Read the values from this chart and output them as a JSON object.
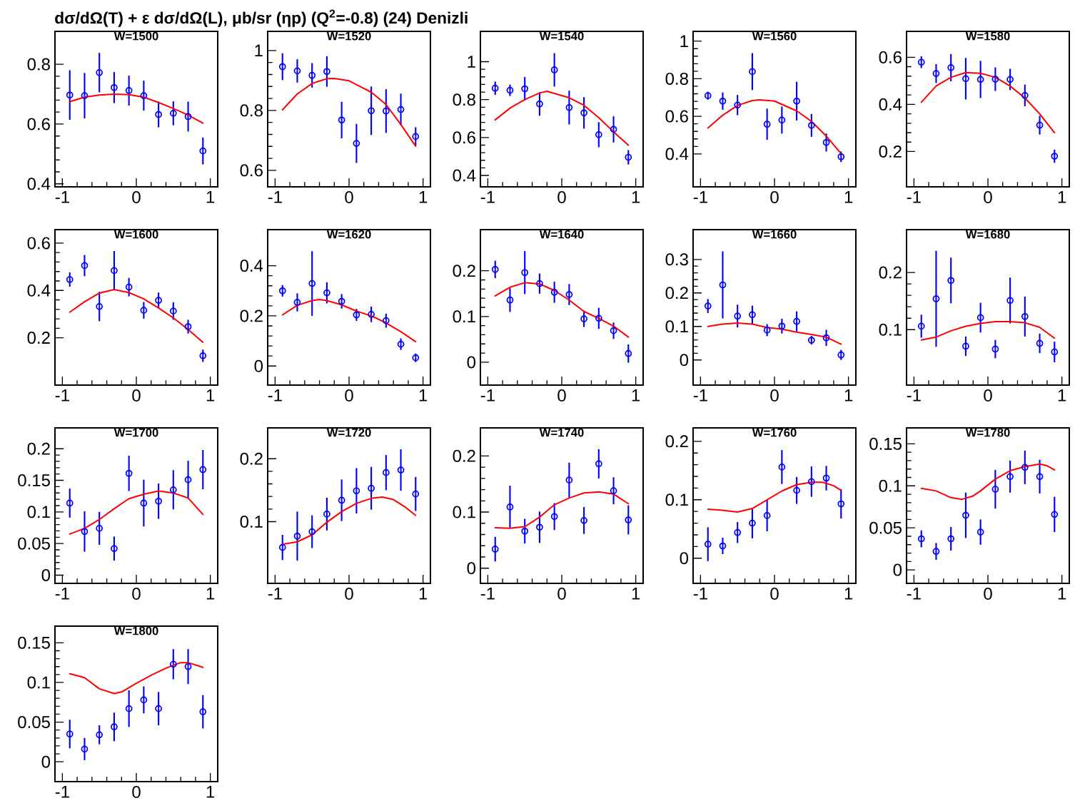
{
  "chart_data": [
    {
      "type": "scatter",
      "title": "W=1500",
      "annotations": [
        "dσ/dΩ(T) + ε dσ/dΩ(L), μb/sr (ηp) (Q$^{2}$=-0.8)  (24)  Denizli"
      ],
      "x": [
        -0.9,
        -0.7,
        -0.5,
        -0.3,
        -0.1,
        0.1,
        0.3,
        0.5,
        0.7,
        0.9
      ],
      "xlim": [
        -1.1,
        1.1
      ],
      "xticks": [
        -1,
        0,
        1
      ],
      "ylim": [
        0.39,
        0.91
      ],
      "yticks": [
        0.4,
        0.6,
        0.8
      ],
      "series": [
        {
          "color": "#0000ff",
          "marker": "circle",
          "values": [
            0.697,
            0.695,
            0.772,
            0.722,
            0.712,
            0.695,
            0.632,
            0.636,
            0.625,
            0.51
          ],
          "errors": [
            0.083,
            0.076,
            0.066,
            0.052,
            0.05,
            0.05,
            0.043,
            0.04,
            0.05,
            0.045
          ]
        },
        {
          "type": "line",
          "color": "#ff0000",
          "x": [
            -0.9,
            -0.7,
            -0.5,
            -0.3,
            -0.1,
            0.1,
            0.3,
            0.5,
            0.7,
            0.9
          ],
          "values": [
            0.675,
            0.69,
            0.697,
            0.7,
            0.698,
            0.69,
            0.672,
            0.652,
            0.63,
            0.603
          ]
        }
      ]
    },
    {
      "type": "scatter",
      "title": "W=1520",
      "x": [
        -0.9,
        -0.7,
        -0.5,
        -0.3,
        -0.1,
        0.1,
        0.3,
        0.5,
        0.7,
        0.9
      ],
      "xlim": [
        -1.1,
        1.1
      ],
      "xticks": [
        -1,
        0,
        1
      ],
      "ylim": [
        0.545,
        1.064
      ],
      "yticks": [
        0.6,
        0.8,
        1
      ],
      "series": [
        {
          "color": "#0000ff",
          "marker": "circle",
          "values": [
            0.946,
            0.932,
            0.917,
            0.93,
            0.768,
            0.69,
            0.799,
            0.798,
            0.803,
            0.713
          ],
          "errors": [
            0.045,
            0.039,
            0.041,
            0.051,
            0.061,
            0.065,
            0.081,
            0.073,
            0.053,
            0.031
          ]
        },
        {
          "type": "line",
          "color": "#ff0000",
          "x": [
            -0.9,
            -0.7,
            -0.5,
            -0.3,
            -0.2,
            0,
            0.3,
            0.5,
            0.7,
            0.9
          ],
          "values": [
            0.802,
            0.855,
            0.89,
            0.906,
            0.907,
            0.899,
            0.861,
            0.82,
            0.753,
            0.681
          ]
        }
      ]
    },
    {
      "type": "scatter",
      "title": "W=1540",
      "x": [
        -0.9,
        -0.7,
        -0.5,
        -0.3,
        -0.1,
        0.1,
        0.3,
        0.5,
        0.7,
        0.9
      ],
      "xlim": [
        -1.1,
        1.1
      ],
      "xticks": [
        -1,
        0,
        1
      ],
      "ylim": [
        0.34,
        1.16
      ],
      "yticks": [
        0.4,
        0.6,
        0.8,
        1
      ],
      "series": [
        {
          "color": "#0000ff",
          "marker": "circle",
          "values": [
            0.86,
            0.849,
            0.857,
            0.777,
            0.957,
            0.758,
            0.73,
            0.615,
            0.643,
            0.496
          ],
          "errors": [
            0.035,
            0.03,
            0.062,
            0.062,
            0.088,
            0.089,
            0.083,
            0.066,
            0.069,
            0.038
          ]
        },
        {
          "type": "line",
          "color": "#ff0000",
          "x": [
            -0.9,
            -0.7,
            -0.5,
            -0.3,
            -0.2,
            0.1,
            0.3,
            0.5,
            0.7,
            0.9
          ],
          "values": [
            0.693,
            0.755,
            0.8,
            0.835,
            0.844,
            0.81,
            0.77,
            0.705,
            0.63,
            0.56
          ]
        }
      ]
    },
    {
      "type": "scatter",
      "title": "W=1560",
      "x": [
        -0.9,
        -0.7,
        -0.5,
        -0.3,
        -0.1,
        0.1,
        0.3,
        0.5,
        0.7,
        0.9
      ],
      "xlim": [
        -1.1,
        1.1
      ],
      "xticks": [
        -1,
        0,
        1
      ],
      "ylim": [
        0.225,
        1.052
      ],
      "yticks": [
        0.4,
        0.6,
        0.8,
        1
      ],
      "series": [
        {
          "color": "#0000ff",
          "marker": "circle",
          "values": [
            0.71,
            0.681,
            0.66,
            0.838,
            0.558,
            0.58,
            0.681,
            0.552,
            0.461,
            0.385
          ],
          "errors": [
            0.021,
            0.046,
            0.054,
            0.098,
            0.083,
            0.072,
            0.103,
            0.061,
            0.048,
            0.028
          ]
        },
        {
          "type": "line",
          "color": "#ff0000",
          "x": [
            -0.9,
            -0.7,
            -0.5,
            -0.3,
            -0.2,
            0,
            0.3,
            0.5,
            0.7,
            0.9
          ],
          "values": [
            0.538,
            0.606,
            0.658,
            0.684,
            0.688,
            0.681,
            0.629,
            0.573,
            0.495,
            0.402
          ]
        }
      ]
    },
    {
      "type": "scatter",
      "title": "W=1580",
      "x": [
        -0.9,
        -0.7,
        -0.5,
        -0.3,
        -0.1,
        0.1,
        0.3,
        0.5,
        0.7,
        0.9
      ],
      "xlim": [
        -1.1,
        1.1
      ],
      "xticks": [
        -1,
        0,
        1
      ],
      "ylim": [
        0.05,
        0.71
      ],
      "yticks": [
        0.2,
        0.4,
        0.6
      ],
      "series": [
        {
          "color": "#0000ff",
          "marker": "circle",
          "values": [
            0.579,
            0.531,
            0.556,
            0.509,
            0.506,
            0.507,
            0.506,
            0.438,
            0.312,
            0.18
          ],
          "errors": [
            0.025,
            0.04,
            0.058,
            0.088,
            0.079,
            0.05,
            0.045,
            0.046,
            0.04,
            0.028
          ]
        },
        {
          "type": "line",
          "color": "#ff0000",
          "x": [
            -0.9,
            -0.7,
            -0.5,
            -0.3,
            -0.1,
            0.1,
            0.3,
            0.5,
            0.7,
            0.9
          ],
          "values": [
            0.409,
            0.478,
            0.515,
            0.535,
            0.532,
            0.515,
            0.478,
            0.427,
            0.36,
            0.28
          ]
        }
      ]
    },
    {
      "type": "scatter",
      "title": "W=1600",
      "x": [
        -0.9,
        -0.7,
        -0.5,
        -0.3,
        -0.1,
        0.1,
        0.3,
        0.5,
        0.7,
        0.9
      ],
      "xlim": [
        -1.1,
        1.1
      ],
      "xticks": [
        -1,
        0,
        1
      ],
      "ylim": [
        0.0,
        0.657
      ],
      "yticks": [
        0.2,
        0.4,
        0.6
      ],
      "series": [
        {
          "color": "#0000ff",
          "marker": "circle",
          "values": [
            0.446,
            0.505,
            0.332,
            0.484,
            0.414,
            0.316,
            0.358,
            0.313,
            0.247,
            0.124
          ],
          "errors": [
            0.03,
            0.045,
            0.062,
            0.083,
            0.039,
            0.035,
            0.033,
            0.037,
            0.029,
            0.026
          ]
        },
        {
          "type": "line",
          "color": "#ff0000",
          "x": [
            -0.9,
            -0.7,
            -0.5,
            -0.3,
            -0.1,
            0.1,
            0.3,
            0.5,
            0.7,
            0.9
          ],
          "values": [
            0.308,
            0.352,
            0.389,
            0.404,
            0.391,
            0.364,
            0.326,
            0.284,
            0.235,
            0.181
          ]
        }
      ]
    },
    {
      "type": "scatter",
      "title": "W=1620",
      "x": [
        -0.9,
        -0.7,
        -0.5,
        -0.3,
        -0.1,
        0.1,
        0.3,
        0.5,
        0.7,
        0.9
      ],
      "xlim": [
        -1.1,
        1.1
      ],
      "xticks": [
        -1,
        0,
        1
      ],
      "ylim": [
        -0.076,
        0.544
      ],
      "yticks": [
        0,
        0.2,
        0.4
      ],
      "series": [
        {
          "color": "#0000ff",
          "marker": "circle",
          "values": [
            0.3,
            0.254,
            0.329,
            0.292,
            0.258,
            0.204,
            0.206,
            0.181,
            0.087,
            0.033
          ],
          "errors": [
            0.023,
            0.036,
            0.129,
            0.042,
            0.029,
            0.024,
            0.031,
            0.028,
            0.023,
            0.017
          ]
        },
        {
          "type": "line",
          "color": "#ff0000",
          "x": [
            -0.9,
            -0.7,
            -0.5,
            -0.4,
            -0.3,
            -0.1,
            0.1,
            0.3,
            0.5,
            0.7,
            0.9
          ],
          "values": [
            0.204,
            0.242,
            0.261,
            0.265,
            0.261,
            0.244,
            0.219,
            0.2,
            0.172,
            0.137,
            0.097
          ]
        }
      ]
    },
    {
      "type": "scatter",
      "title": "W=1640",
      "x": [
        -0.9,
        -0.7,
        -0.5,
        -0.3,
        -0.1,
        0.1,
        0.3,
        0.5,
        0.7,
        0.9
      ],
      "xlim": [
        -1.1,
        1.1
      ],
      "xticks": [
        -1,
        0,
        1
      ],
      "ylim": [
        -0.05,
        0.29
      ],
      "yticks": [
        0,
        0.1,
        0.2
      ],
      "series": [
        {
          "color": "#0000ff",
          "marker": "circle",
          "values": [
            0.203,
            0.136,
            0.196,
            0.172,
            0.153,
            0.148,
            0.095,
            0.096,
            0.069,
            0.019
          ],
          "errors": [
            0.019,
            0.026,
            0.047,
            0.022,
            0.023,
            0.023,
            0.018,
            0.023,
            0.018,
            0.02
          ]
        },
        {
          "type": "line",
          "color": "#ff0000",
          "x": [
            -0.9,
            -0.7,
            -0.5,
            -0.3,
            -0.1,
            0.1,
            0.3,
            0.5,
            0.7,
            0.9
          ],
          "values": [
            0.145,
            0.164,
            0.174,
            0.171,
            0.157,
            0.136,
            0.111,
            0.096,
            0.079,
            0.055
          ]
        }
      ]
    },
    {
      "type": "scatter",
      "title": "W=1660",
      "x": [
        -0.9,
        -0.7,
        -0.5,
        -0.3,
        -0.1,
        0.1,
        0.3,
        0.5,
        0.7,
        0.9
      ],
      "xlim": [
        -1.1,
        1.1
      ],
      "xticks": [
        -1,
        0,
        1
      ],
      "ylim": [
        -0.075,
        0.389
      ],
      "yticks": [
        0,
        0.1,
        0.2,
        0.3
      ],
      "series": [
        {
          "color": "#0000ff",
          "marker": "circle",
          "values": [
            0.161,
            0.224,
            0.131,
            0.135,
            0.089,
            0.101,
            0.115,
            0.059,
            0.066,
            0.015
          ],
          "errors": [
            0.021,
            0.1,
            0.034,
            0.027,
            0.018,
            0.022,
            0.03,
            0.013,
            0.024,
            0.015
          ]
        },
        {
          "type": "line",
          "color": "#ff0000",
          "x": [
            -0.9,
            -0.7,
            -0.5,
            -0.3,
            -0.1,
            0.1,
            0.3,
            0.5,
            0.7,
            0.9
          ],
          "values": [
            0.1,
            0.107,
            0.11,
            0.107,
            0.097,
            0.092,
            0.083,
            0.076,
            0.068,
            0.047
          ]
        }
      ]
    },
    {
      "type": "scatter",
      "title": "W=1680",
      "x": [
        -0.9,
        -0.7,
        -0.5,
        -0.3,
        -0.1,
        0.1,
        0.3,
        0.5,
        0.7,
        0.9
      ],
      "xlim": [
        -1.1,
        1.1
      ],
      "xticks": [
        -1,
        0,
        1
      ],
      "ylim": [
        0.003,
        0.275
      ],
      "yticks": [
        0.1,
        0.2
      ],
      "series": [
        {
          "color": "#0000ff",
          "marker": "circle",
          "values": [
            0.106,
            0.154,
            0.186,
            0.071,
            0.121,
            0.066,
            0.151,
            0.123,
            0.076,
            0.061
          ],
          "errors": [
            0.02,
            0.084,
            0.04,
            0.017,
            0.026,
            0.016,
            0.04,
            0.035,
            0.017,
            0.018
          ]
        },
        {
          "type": "line",
          "color": "#ff0000",
          "x": [
            -0.9,
            -0.7,
            -0.5,
            -0.3,
            -0.1,
            0.1,
            0.3,
            0.5,
            0.7,
            0.9
          ],
          "values": [
            0.082,
            0.087,
            0.098,
            0.106,
            0.111,
            0.114,
            0.114,
            0.112,
            0.104,
            0.085
          ]
        }
      ]
    },
    {
      "type": "scatter",
      "title": "W=1700",
      "x": [
        -0.9,
        -0.7,
        -0.5,
        -0.3,
        -0.1,
        0.1,
        0.3,
        0.5,
        0.7,
        0.9
      ],
      "xlim": [
        -1.1,
        1.1
      ],
      "xticks": [
        -1,
        0,
        1
      ],
      "ylim": [
        -0.013,
        0.233
      ],
      "yticks": [
        0,
        0.05,
        0.1,
        0.15,
        0.2
      ],
      "series": [
        {
          "color": "#0000ff",
          "marker": "circle",
          "values": [
            0.114,
            0.069,
            0.074,
            0.042,
            0.161,
            0.114,
            0.117,
            0.135,
            0.151,
            0.167
          ],
          "errors": [
            0.023,
            0.032,
            0.026,
            0.019,
            0.028,
            0.037,
            0.028,
            0.031,
            0.03,
            0.031
          ]
        },
        {
          "type": "line",
          "color": "#ff0000",
          "x": [
            -0.9,
            -0.7,
            -0.5,
            -0.3,
            -0.1,
            0.1,
            0.3,
            0.5,
            0.7,
            0.9
          ],
          "values": [
            0.065,
            0.074,
            0.088,
            0.105,
            0.121,
            0.128,
            0.133,
            0.13,
            0.122,
            0.096
          ]
        }
      ]
    },
    {
      "type": "scatter",
      "title": "W=1720",
      "x": [
        -0.9,
        -0.7,
        -0.5,
        -0.3,
        -0.1,
        0.1,
        0.3,
        0.5,
        0.7,
        0.9
      ],
      "xlim": [
        -1.1,
        1.1
      ],
      "xticks": [
        -1,
        0,
        1
      ],
      "ylim": [
        0.002,
        0.249
      ],
      "yticks": [
        0.1,
        0.2
      ],
      "series": [
        {
          "color": "#0000ff",
          "marker": "circle",
          "values": [
            0.059,
            0.077,
            0.084,
            0.112,
            0.134,
            0.149,
            0.153,
            0.178,
            0.182,
            0.144
          ],
          "errors": [
            0.02,
            0.039,
            0.026,
            0.026,
            0.033,
            0.036,
            0.034,
            0.028,
            0.033,
            0.027
          ]
        },
        {
          "type": "line",
          "color": "#ff0000",
          "x": [
            -0.9,
            -0.7,
            -0.5,
            -0.3,
            -0.1,
            0.1,
            0.3,
            0.45,
            0.6,
            0.75,
            0.9
          ],
          "values": [
            0.064,
            0.068,
            0.079,
            0.099,
            0.116,
            0.129,
            0.137,
            0.139,
            0.135,
            0.124,
            0.11
          ]
        }
      ]
    },
    {
      "type": "scatter",
      "title": "W=1740",
      "x": [
        -0.9,
        -0.7,
        -0.5,
        -0.3,
        -0.1,
        0.1,
        0.3,
        0.5,
        0.7,
        0.9
      ],
      "xlim": [
        -1.1,
        1.1
      ],
      "xticks": [
        -1,
        0,
        1
      ],
      "ylim": [
        -0.027,
        0.25
      ],
      "yticks": [
        0,
        0.1,
        0.2
      ],
      "series": [
        {
          "color": "#0000ff",
          "marker": "circle",
          "values": [
            0.034,
            0.109,
            0.066,
            0.073,
            0.092,
            0.157,
            0.085,
            0.186,
            0.138,
            0.086
          ],
          "errors": [
            0.022,
            0.038,
            0.022,
            0.028,
            0.024,
            0.031,
            0.024,
            0.026,
            0.024,
            0.026
          ]
        },
        {
          "type": "line",
          "color": "#ff0000",
          "x": [
            -0.9,
            -0.7,
            -0.5,
            -0.3,
            -0.1,
            0.1,
            0.3,
            0.5,
            0.7,
            0.9
          ],
          "values": [
            0.072,
            0.071,
            0.074,
            0.091,
            0.113,
            0.125,
            0.134,
            0.136,
            0.132,
            0.115
          ]
        }
      ]
    },
    {
      "type": "scatter",
      "title": "W=1760",
      "x": [
        -0.9,
        -0.7,
        -0.5,
        -0.3,
        -0.1,
        0.1,
        0.3,
        0.5,
        0.7,
        0.9
      ],
      "xlim": [
        -1.1,
        1.1
      ],
      "xticks": [
        -1,
        0,
        1
      ],
      "ylim": [
        -0.043,
        0.223
      ],
      "yticks": [
        0,
        0.1,
        0.2
      ],
      "series": [
        {
          "color": "#0000ff",
          "marker": "circle",
          "values": [
            0.024,
            0.021,
            0.044,
            0.06,
            0.073,
            0.156,
            0.116,
            0.131,
            0.137,
            0.093
          ],
          "errors": [
            0.029,
            0.014,
            0.018,
            0.026,
            0.027,
            0.029,
            0.023,
            0.026,
            0.021,
            0.025
          ]
        },
        {
          "type": "line",
          "color": "#ff0000",
          "x": [
            -0.9,
            -0.7,
            -0.5,
            -0.3,
            -0.1,
            0.1,
            0.3,
            0.5,
            0.65,
            0.8,
            0.9
          ],
          "values": [
            0.084,
            0.082,
            0.079,
            0.085,
            0.1,
            0.115,
            0.126,
            0.13,
            0.13,
            0.124,
            0.116
          ]
        }
      ]
    },
    {
      "type": "scatter",
      "title": "W=1780",
      "x": [
        -0.9,
        -0.7,
        -0.5,
        -0.3,
        -0.1,
        0.1,
        0.3,
        0.5,
        0.7,
        0.9
      ],
      "xlim": [
        -1.1,
        1.1
      ],
      "xticks": [
        -1,
        0,
        1
      ],
      "ylim": [
        -0.016,
        0.169
      ],
      "yticks": [
        0,
        0.05,
        0.1,
        0.15
      ],
      "series": [
        {
          "color": "#0000ff",
          "marker": "circle",
          "values": [
            0.037,
            0.022,
            0.037,
            0.065,
            0.045,
            0.096,
            0.111,
            0.122,
            0.111,
            0.066
          ],
          "errors": [
            0.01,
            0.01,
            0.014,
            0.027,
            0.015,
            0.023,
            0.019,
            0.02,
            0.02,
            0.021
          ]
        },
        {
          "type": "line",
          "color": "#ff0000",
          "x": [
            -0.9,
            -0.7,
            -0.5,
            -0.35,
            -0.2,
            -0.1,
            0.1,
            0.3,
            0.5,
            0.7,
            0.8,
            0.9
          ],
          "values": [
            0.097,
            0.094,
            0.086,
            0.084,
            0.088,
            0.094,
            0.108,
            0.118,
            0.123,
            0.126,
            0.124,
            0.119
          ]
        }
      ]
    },
    {
      "type": "scatter",
      "title": "W=1800",
      "x": [
        -0.9,
        -0.7,
        -0.5,
        -0.3,
        -0.1,
        0.1,
        0.3,
        0.5,
        0.7,
        0.9
      ],
      "xlim": [
        -1.1,
        1.1
      ],
      "xticks": [
        -1,
        0,
        1
      ],
      "ylim": [
        -0.025,
        0.171
      ],
      "yticks": [
        0,
        0.05,
        0.1,
        0.15
      ],
      "series": [
        {
          "color": "#0000ff",
          "marker": "circle",
          "values": [
            0.035,
            0.016,
            0.034,
            0.044,
            0.067,
            0.078,
            0.067,
            0.123,
            0.12,
            0.063
          ],
          "errors": [
            0.018,
            0.014,
            0.012,
            0.018,
            0.023,
            0.017,
            0.021,
            0.019,
            0.022,
            0.021
          ]
        },
        {
          "type": "line",
          "color": "#ff0000",
          "x": [
            -0.9,
            -0.7,
            -0.5,
            -0.3,
            -0.2,
            0,
            0.2,
            0.4,
            0.6,
            0.7,
            0.9
          ],
          "values": [
            0.111,
            0.106,
            0.092,
            0.086,
            0.088,
            0.099,
            0.109,
            0.118,
            0.125,
            0.125,
            0.119
          ]
        }
      ]
    }
  ]
}
